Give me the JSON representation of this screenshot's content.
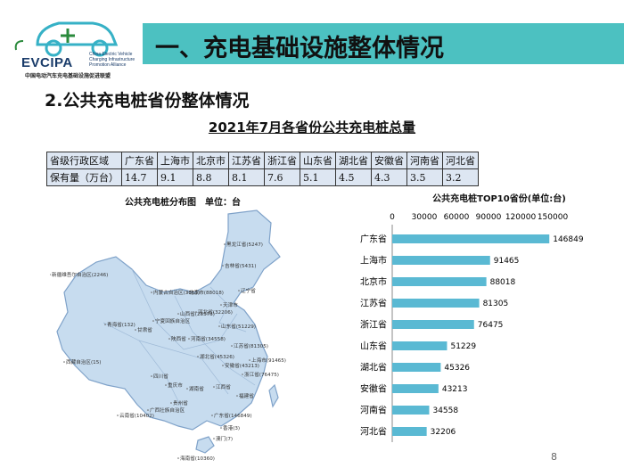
{
  "logo": {
    "text": "EVCIPA",
    "small_text": "China Electric Vehicle Charging Infrastructure Promotion Alliance",
    "subtitle": "中国电动汽车充电基础设施促进联盟"
  },
  "header": {
    "title": "一、充电基础设施整体情况"
  },
  "section": {
    "subtitle": "2.公共充电桩省份整体情况"
  },
  "table": {
    "title": "2021年7月各省份公共充电桩总量",
    "header_row": [
      "省级行政区域",
      "广东省",
      "上海市",
      "北京市",
      "江苏省",
      "浙江省",
      "山东省",
      "湖北省",
      "安徽省",
      "河南省",
      "河北省"
    ],
    "value_row": [
      "保有量（万台）",
      "14.7",
      "9.1",
      "8.8",
      "8.1",
      "7.6",
      "5.1",
      "4.5",
      "4.3",
      "3.5",
      "3.2"
    ]
  },
  "map": {
    "title": "公共充电桩分布图　单位：台",
    "labels": [
      "黑龙江省(5247)",
      "吉林省(5431)",
      "新疆维吾尔自治区(2246)",
      "内蒙古自治区(3663)",
      "北京市(88018)",
      "辽宁省",
      "天津市",
      "河北省(32206)",
      "山西省(28373)",
      "宁夏回族自治区",
      "青海省(132)",
      "甘肃省",
      "陕西省",
      "山东省(51229)",
      "河南省(34558)",
      "江苏省(81305)",
      "西藏自治区(15)",
      "四川省",
      "湖北省(45326)",
      "上海市(91465)",
      "安徽省(43213)",
      "浙江省(76475)",
      "重庆市",
      "湖南省",
      "江西省",
      "福建省",
      "贵州省",
      "云南省(10402)",
      "广西壮族自治区",
      "广东省(146849)",
      "香港(3)",
      "澳门(7)",
      "海南省(10360)"
    ]
  },
  "chart_data": {
    "type": "bar",
    "title": "公共充电桩TOP10省份(单位:台)",
    "orientation": "horizontal",
    "categories": [
      "广东省",
      "上海市",
      "北京市",
      "江苏省",
      "浙江省",
      "山东省",
      "湖北省",
      "安徽省",
      "河南省",
      "河北省"
    ],
    "values": [
      146849,
      91465,
      88018,
      81305,
      76475,
      51229,
      45326,
      43213,
      34558,
      32206
    ],
    "xlim": [
      0,
      150000
    ],
    "ticks": [
      "0",
      "30000",
      "60000",
      "90000",
      "120000",
      "150000"
    ],
    "bar_color": "#5ab9d3"
  },
  "page": {
    "number": "8"
  },
  "colors": {
    "banner": "#4cc1c1",
    "table_bg": "#dde6f2",
    "bar": "#5ab9d3",
    "map_fill": "#c7dcef",
    "map_stroke": "#7fa2c9"
  }
}
